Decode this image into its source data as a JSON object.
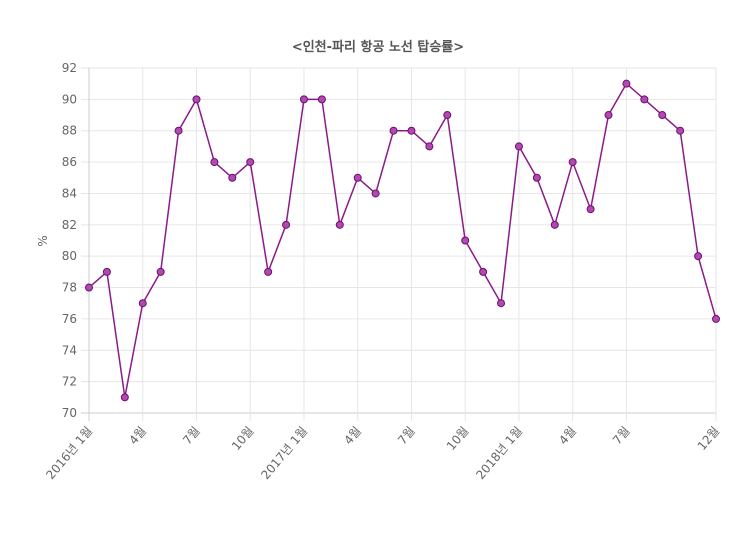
{
  "chart_data": {
    "type": "line",
    "title": "<인천-파리 항공 노선 탑승률>",
    "xlabel": "",
    "ylabel": "%",
    "ylim": [
      70,
      92
    ],
    "y_ticks": [
      "92",
      "90",
      "88",
      "86",
      "84",
      "82",
      "80",
      "78",
      "76",
      "74",
      "72",
      "70"
    ],
    "x_tick_labels": [
      {
        "index": 0,
        "text": "2016년  1월"
      },
      {
        "index": 3,
        "text": "4월"
      },
      {
        "index": 6,
        "text": "7월"
      },
      {
        "index": 9,
        "text": "10월"
      },
      {
        "index": 12,
        "text": "2017년  1월"
      },
      {
        "index": 15,
        "text": "4월"
      },
      {
        "index": 18,
        "text": "7월"
      },
      {
        "index": 21,
        "text": "10월"
      },
      {
        "index": 24,
        "text": "2018년  1월"
      },
      {
        "index": 27,
        "text": "4월"
      },
      {
        "index": 30,
        "text": "7월"
      },
      {
        "index": 35,
        "text": "12월"
      }
    ],
    "categories": [
      "2016-01",
      "2016-02",
      "2016-03",
      "2016-04",
      "2016-05",
      "2016-06",
      "2016-07",
      "2016-08",
      "2016-09",
      "2016-10",
      "2016-11",
      "2016-12",
      "2017-01",
      "2017-02",
      "2017-03",
      "2017-04",
      "2017-05",
      "2017-06",
      "2017-07",
      "2017-08",
      "2017-09",
      "2017-10",
      "2017-11",
      "2017-12",
      "2018-01",
      "2018-02",
      "2018-03",
      "2018-04",
      "2018-05",
      "2018-06",
      "2018-07",
      "2018-08",
      "2018-09",
      "2018-10",
      "2018-11",
      "2018-12"
    ],
    "series": [
      {
        "values": [
          78,
          79,
          71,
          77,
          79,
          88,
          90,
          86,
          85,
          86,
          79,
          82,
          90,
          90,
          82,
          85,
          84,
          88,
          88,
          87,
          89,
          81,
          79,
          77,
          87,
          85,
          82,
          86,
          83,
          89,
          91,
          90,
          89,
          88,
          80,
          76
        ]
      }
    ],
    "grid": true,
    "colors": {
      "line": "#8b1a8b",
      "point_fill": "#b04ab0",
      "point_stroke": "#6e0f6e",
      "grid": "#e6e6e6",
      "axis": "#cccccc"
    }
  }
}
